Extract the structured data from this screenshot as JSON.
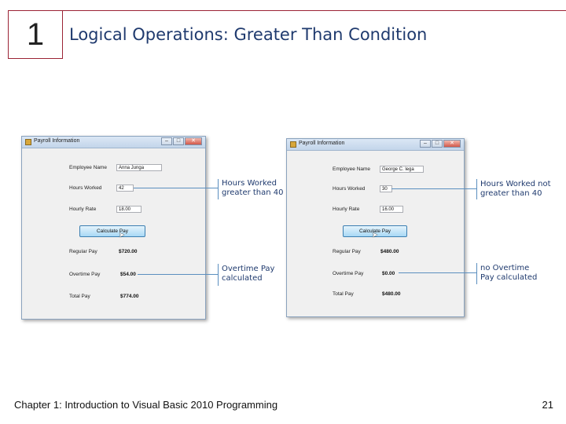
{
  "slide": {
    "chapter_number": "1",
    "title": "Logical Operations: Greater Than Condition",
    "footer": "Chapter 1: Introduction to Visual Basic 2010 Programming",
    "page_number": "21"
  },
  "window_left": {
    "title": "Payroll Information",
    "controls": [
      "–",
      "□",
      "✕"
    ],
    "employee_name_label": "Employee Name",
    "employee_name_value": "Anna Junga",
    "hours_worked_label": "Hours Worked",
    "hours_worked_value": "42",
    "hourly_rate_label": "Hourly Rate",
    "hourly_rate_value": "18.00",
    "calculate_button": "Calculate Pay",
    "regular_pay_label": "Regular Pay",
    "regular_pay_value": "$720.00",
    "overtime_pay_label": "Overtime Pay",
    "overtime_pay_value": "$54.00",
    "total_pay_label": "Total Pay",
    "total_pay_value": "$774.00"
  },
  "window_right": {
    "title": "Payroll Information",
    "controls": [
      "–",
      "□",
      "✕"
    ],
    "employee_name_label": "Employee Name",
    "employee_name_value": "George C. lega",
    "hours_worked_label": "Hours Worked",
    "hours_worked_value": "30",
    "hourly_rate_label": "Hourly Rate",
    "hourly_rate_value": "16.00",
    "calculate_button": "Calculate Pay",
    "regular_pay_label": "Regular Pay",
    "regular_pay_value": "$480.00",
    "overtime_pay_label": "Overtime Pay",
    "overtime_pay_value": "$0.00",
    "total_pay_label": "Total Pay",
    "total_pay_value": "$480.00"
  },
  "callouts": {
    "left_top_line1": "Hours Worked",
    "left_top_line2": "greater than 40",
    "left_bottom_line1": "Overtime Pay",
    "left_bottom_line2": "calculated",
    "right_top_line1": "Hours Worked not",
    "right_top_line2": "greater than 40",
    "right_bottom_line1": "no Overtime",
    "right_bottom_line2": "Pay calculated"
  },
  "icons": {
    "cursor": "pointer-cursor-icon",
    "window": "window-app-icon"
  }
}
